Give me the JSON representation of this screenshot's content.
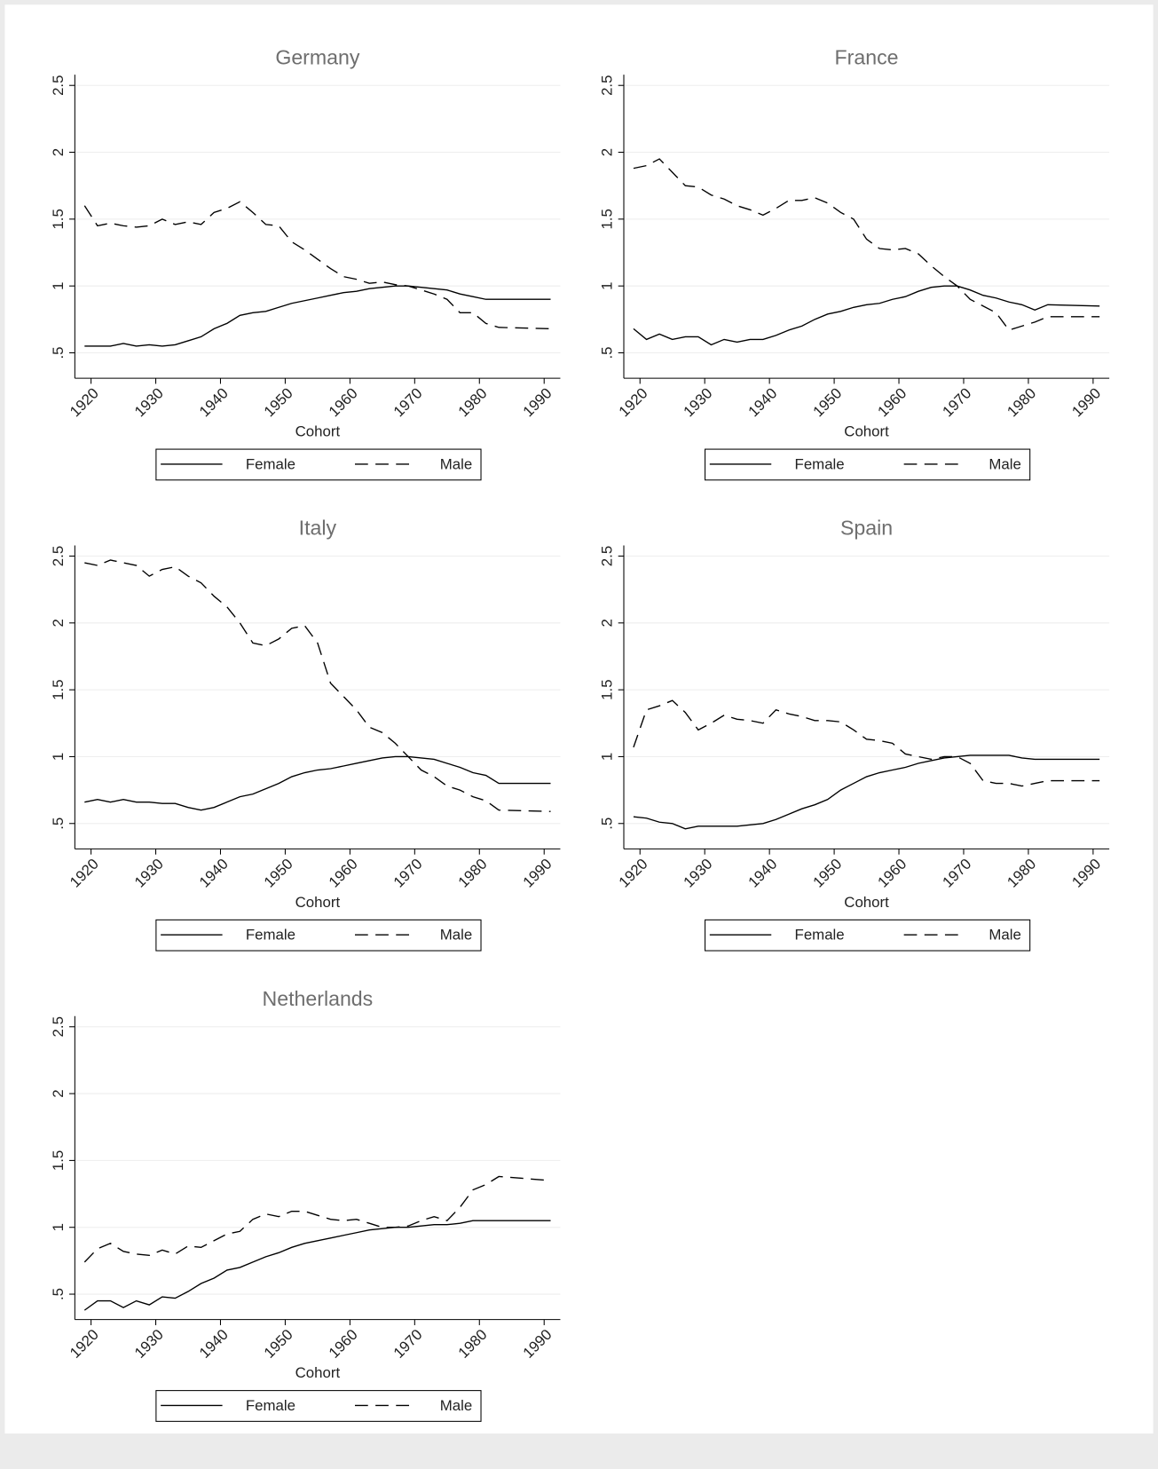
{
  "chart_data": [
    {
      "type": "line",
      "title": "Germany",
      "xlabel": "Cohort",
      "x": [
        1919,
        1921,
        1923,
        1925,
        1927,
        1929,
        1931,
        1933,
        1935,
        1937,
        1939,
        1941,
        1943,
        1945,
        1947,
        1949,
        1951,
        1953,
        1955,
        1957,
        1959,
        1961,
        1963,
        1965,
        1967,
        1969,
        1971,
        1973,
        1975,
        1977,
        1979,
        1981,
        1983,
        1991
      ],
      "series": [
        {
          "name": "Female",
          "color": "#000000",
          "linestyle": "solid",
          "values": [
            0.55,
            0.55,
            0.55,
            0.57,
            0.55,
            0.56,
            0.55,
            0.56,
            0.59,
            0.62,
            0.68,
            0.72,
            0.78,
            0.8,
            0.81,
            0.84,
            0.87,
            0.89,
            0.91,
            0.93,
            0.95,
            0.96,
            0.98,
            0.99,
            1.0,
            1.0,
            0.99,
            0.98,
            0.97,
            0.94,
            0.92,
            0.9,
            0.9,
            0.9
          ]
        },
        {
          "name": "Male",
          "color": "#000000",
          "linestyle": "dashed",
          "values": [
            1.6,
            1.45,
            1.47,
            1.45,
            1.44,
            1.45,
            1.5,
            1.46,
            1.48,
            1.46,
            1.55,
            1.58,
            1.63,
            1.55,
            1.46,
            1.45,
            1.33,
            1.27,
            1.2,
            1.13,
            1.07,
            1.05,
            1.02,
            1.03,
            1.01,
            1.0,
            0.97,
            0.94,
            0.9,
            0.8,
            0.8,
            0.72,
            0.69,
            0.68
          ]
        }
      ],
      "xlim": [
        1917.5,
        1992.5
      ],
      "xticks": [
        1920,
        1930,
        1940,
        1950,
        1960,
        1970,
        1980,
        1990
      ],
      "ylim": [
        0.31,
        2.58
      ],
      "yticks": [
        {
          "value": 0.5,
          "label": ".5"
        },
        1,
        1.5,
        2,
        2.5
      ],
      "grid": true,
      "legend": "bottom"
    },
    {
      "type": "line",
      "title": "France",
      "xlabel": "Cohort",
      "x": [
        1919,
        1921,
        1923,
        1925,
        1927,
        1929,
        1931,
        1933,
        1935,
        1937,
        1939,
        1941,
        1943,
        1945,
        1947,
        1949,
        1951,
        1953,
        1955,
        1957,
        1959,
        1961,
        1963,
        1965,
        1967,
        1969,
        1971,
        1973,
        1975,
        1977,
        1979,
        1981,
        1983,
        1991
      ],
      "series": [
        {
          "name": "Female",
          "color": "#000000",
          "linestyle": "solid",
          "values": [
            0.68,
            0.6,
            0.64,
            0.6,
            0.62,
            0.62,
            0.56,
            0.6,
            0.58,
            0.6,
            0.6,
            0.63,
            0.67,
            0.7,
            0.75,
            0.79,
            0.81,
            0.84,
            0.86,
            0.87,
            0.9,
            0.92,
            0.96,
            0.99,
            1.0,
            1.0,
            0.97,
            0.93,
            0.91,
            0.88,
            0.86,
            0.82,
            0.86,
            0.85
          ]
        },
        {
          "name": "Male",
          "color": "#000000",
          "linestyle": "dashed",
          "values": [
            1.88,
            1.9,
            1.95,
            1.85,
            1.75,
            1.74,
            1.68,
            1.65,
            1.6,
            1.57,
            1.53,
            1.58,
            1.64,
            1.64,
            1.66,
            1.62,
            1.55,
            1.5,
            1.35,
            1.28,
            1.27,
            1.28,
            1.24,
            1.15,
            1.07,
            1.0,
            0.9,
            0.85,
            0.8,
            0.67,
            0.7,
            0.73,
            0.77,
            0.77
          ]
        }
      ],
      "xlim": [
        1917.5,
        1992.5
      ],
      "xticks": [
        1920,
        1930,
        1940,
        1950,
        1960,
        1970,
        1980,
        1990
      ],
      "ylim": [
        0.31,
        2.58
      ],
      "yticks": [
        {
          "value": 0.5,
          "label": ".5"
        },
        1,
        1.5,
        2,
        2.5
      ],
      "grid": true,
      "legend": "bottom"
    },
    {
      "type": "line",
      "title": "Italy",
      "xlabel": "Cohort",
      "x": [
        1919,
        1921,
        1923,
        1925,
        1927,
        1929,
        1931,
        1933,
        1935,
        1937,
        1939,
        1941,
        1943,
        1945,
        1947,
        1949,
        1951,
        1953,
        1955,
        1957,
        1959,
        1961,
        1963,
        1965,
        1967,
        1969,
        1971,
        1973,
        1975,
        1977,
        1979,
        1981,
        1983,
        1991
      ],
      "series": [
        {
          "name": "Female",
          "color": "#000000",
          "linestyle": "solid",
          "values": [
            0.66,
            0.68,
            0.66,
            0.68,
            0.66,
            0.66,
            0.65,
            0.65,
            0.62,
            0.6,
            0.62,
            0.66,
            0.7,
            0.72,
            0.76,
            0.8,
            0.85,
            0.88,
            0.9,
            0.91,
            0.93,
            0.95,
            0.97,
            0.99,
            1.0,
            1.0,
            0.99,
            0.98,
            0.95,
            0.92,
            0.88,
            0.86,
            0.8,
            0.8
          ]
        },
        {
          "name": "Male",
          "color": "#000000",
          "linestyle": "dashed",
          "values": [
            2.45,
            2.43,
            2.47,
            2.45,
            2.43,
            2.35,
            2.4,
            2.42,
            2.35,
            2.3,
            2.2,
            2.12,
            2.0,
            1.85,
            1.83,
            1.88,
            1.96,
            1.98,
            1.85,
            1.55,
            1.45,
            1.35,
            1.22,
            1.18,
            1.1,
            1.0,
            0.9,
            0.85,
            0.78,
            0.75,
            0.7,
            0.67,
            0.6,
            0.59
          ]
        }
      ],
      "xlim": [
        1917.5,
        1992.5
      ],
      "xticks": [
        1920,
        1930,
        1940,
        1950,
        1960,
        1970,
        1980,
        1990
      ],
      "ylim": [
        0.31,
        2.58
      ],
      "yticks": [
        {
          "value": 0.5,
          "label": ".5"
        },
        1,
        1.5,
        2,
        2.5
      ],
      "grid": true,
      "legend": "bottom"
    },
    {
      "type": "line",
      "title": "Spain",
      "xlabel": "Cohort",
      "x": [
        1919,
        1921,
        1923,
        1925,
        1927,
        1929,
        1931,
        1933,
        1935,
        1937,
        1939,
        1941,
        1943,
        1945,
        1947,
        1949,
        1951,
        1953,
        1955,
        1957,
        1959,
        1961,
        1963,
        1965,
        1967,
        1969,
        1971,
        1973,
        1975,
        1977,
        1979,
        1981,
        1983,
        1991
      ],
      "series": [
        {
          "name": "Female",
          "color": "#000000",
          "linestyle": "solid",
          "values": [
            0.55,
            0.54,
            0.51,
            0.5,
            0.46,
            0.48,
            0.48,
            0.48,
            0.48,
            0.49,
            0.5,
            0.53,
            0.57,
            0.61,
            0.64,
            0.68,
            0.75,
            0.8,
            0.85,
            0.88,
            0.9,
            0.92,
            0.95,
            0.97,
            0.99,
            1.0,
            1.01,
            1.01,
            1.01,
            1.01,
            0.99,
            0.98,
            0.98,
            0.98
          ]
        },
        {
          "name": "Male",
          "color": "#000000",
          "linestyle": "dashed",
          "values": [
            1.07,
            1.35,
            1.38,
            1.42,
            1.33,
            1.2,
            1.25,
            1.31,
            1.28,
            1.27,
            1.25,
            1.35,
            1.32,
            1.3,
            1.27,
            1.27,
            1.26,
            1.2,
            1.13,
            1.12,
            1.1,
            1.02,
            1.0,
            0.98,
            1.0,
            1.0,
            0.95,
            0.82,
            0.8,
            0.8,
            0.78,
            0.8,
            0.82,
            0.82
          ]
        }
      ],
      "xlim": [
        1917.5,
        1992.5
      ],
      "xticks": [
        1920,
        1930,
        1940,
        1950,
        1960,
        1970,
        1980,
        1990
      ],
      "ylim": [
        0.31,
        2.58
      ],
      "yticks": [
        {
          "value": 0.5,
          "label": ".5"
        },
        1,
        1.5,
        2,
        2.5
      ],
      "grid": true,
      "legend": "bottom"
    },
    {
      "type": "line",
      "title": "Netherlands",
      "xlabel": "Cohort",
      "x": [
        1919,
        1921,
        1923,
        1925,
        1927,
        1929,
        1931,
        1933,
        1935,
        1937,
        1939,
        1941,
        1943,
        1945,
        1947,
        1949,
        1951,
        1953,
        1955,
        1957,
        1959,
        1961,
        1963,
        1965,
        1967,
        1969,
        1971,
        1973,
        1975,
        1977,
        1979,
        1981,
        1983,
        1991
      ],
      "series": [
        {
          "name": "Female",
          "color": "#000000",
          "linestyle": "solid",
          "values": [
            0.38,
            0.45,
            0.45,
            0.4,
            0.45,
            0.42,
            0.48,
            0.47,
            0.52,
            0.58,
            0.62,
            0.68,
            0.7,
            0.74,
            0.78,
            0.81,
            0.85,
            0.88,
            0.9,
            0.92,
            0.94,
            0.96,
            0.98,
            0.99,
            1.0,
            1.0,
            1.01,
            1.02,
            1.02,
            1.03,
            1.05,
            1.05,
            1.05,
            1.05
          ]
        },
        {
          "name": "Male",
          "color": "#000000",
          "linestyle": "dashed",
          "values": [
            0.74,
            0.84,
            0.88,
            0.82,
            0.8,
            0.79,
            0.83,
            0.8,
            0.86,
            0.85,
            0.9,
            0.95,
            0.97,
            1.06,
            1.1,
            1.08,
            1.12,
            1.12,
            1.09,
            1.06,
            1.05,
            1.06,
            1.03,
            1.0,
            1.0,
            1.01,
            1.05,
            1.08,
            1.05,
            1.15,
            1.28,
            1.32,
            1.38,
            1.35
          ]
        }
      ],
      "xlim": [
        1917.5,
        1992.5
      ],
      "xticks": [
        1920,
        1930,
        1940,
        1950,
        1960,
        1970,
        1980,
        1990
      ],
      "ylim": [
        0.31,
        2.58
      ],
      "yticks": [
        {
          "value": 0.5,
          "label": ".5"
        },
        1,
        1.5,
        2,
        2.5
      ],
      "grid": true,
      "legend": "bottom"
    }
  ]
}
